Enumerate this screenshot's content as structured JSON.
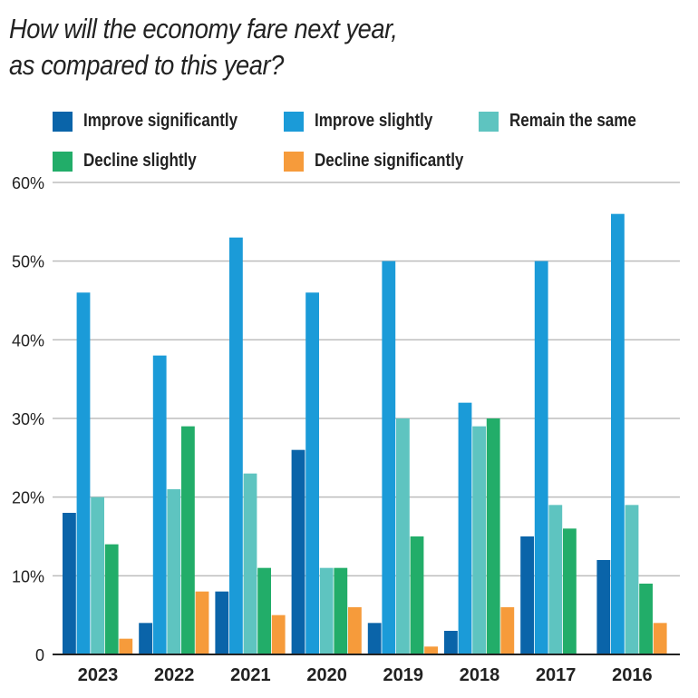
{
  "chart_data": {
    "type": "bar",
    "title": "How will the economy fare next year,",
    "subtitle": "as compared to this year?",
    "categories": [
      "2023",
      "2022",
      "2021",
      "2020",
      "2019",
      "2018",
      "2017",
      "2016"
    ],
    "series": [
      {
        "name": "Improve significantly",
        "color": "#0a64a9",
        "values": [
          18,
          4,
          8,
          26,
          4,
          3,
          15,
          12
        ]
      },
      {
        "name": "Improve slightly",
        "color": "#1b9bd8",
        "values": [
          46,
          38,
          53,
          46,
          50,
          32,
          50,
          56
        ]
      },
      {
        "name": "Remain the same",
        "color": "#5ec4c0",
        "values": [
          20,
          21,
          23,
          11,
          30,
          29,
          19,
          19
        ]
      },
      {
        "name": "Decline slightly",
        "color": "#22ad69",
        "values": [
          14,
          29,
          11,
          11,
          15,
          30,
          16,
          9
        ]
      },
      {
        "name": "Decline significantly",
        "color": "#f69b3b",
        "values": [
          2,
          8,
          5,
          6,
          1,
          6,
          0,
          4
        ]
      }
    ],
    "yticks": [
      "0",
      "10%",
      "20%",
      "30%",
      "40%",
      "50%",
      "60%"
    ],
    "ylim": [
      0,
      60
    ],
    "grid": true,
    "legend_position": "top"
  }
}
